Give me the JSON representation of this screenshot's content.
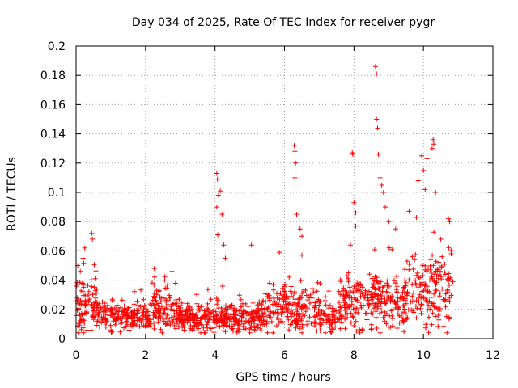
{
  "chart_data": {
    "type": "scatter",
    "title": "Day 034 of 2025, Rate Of TEC Index for receiver pygr",
    "xlabel": "GPS time / hours",
    "ylabel": "ROTI / TECUs",
    "xlim": [
      0,
      12
    ],
    "ylim": [
      0,
      0.2
    ],
    "xticks": [
      "0",
      "2",
      "4",
      "6",
      "8",
      "10",
      "12"
    ],
    "yticks": [
      "0",
      "0.02",
      "0.04",
      "0.06",
      "0.08",
      "0.1",
      "0.12",
      "0.14",
      "0.16",
      "0.18",
      "0.2"
    ],
    "grid": true,
    "marker": "+",
    "color": "#ff0000",
    "series": [
      {
        "name": "ROTI",
        "x_range": [
          0,
          10.85
        ],
        "typical_band": [
          0.005,
          0.03
        ],
        "notable_points": [
          {
            "x": 0.05,
            "y": 0.05
          },
          {
            "x": 0.12,
            "y": 0.046
          },
          {
            "x": 0.2,
            "y": 0.055
          },
          {
            "x": 0.25,
            "y": 0.062
          },
          {
            "x": 0.45,
            "y": 0.072
          },
          {
            "x": 0.47,
            "y": 0.068
          },
          {
            "x": 0.55,
            "y": 0.041
          },
          {
            "x": 2.25,
            "y": 0.048
          },
          {
            "x": 2.55,
            "y": 0.04
          },
          {
            "x": 4.05,
            "y": 0.113
          },
          {
            "x": 4.07,
            "y": 0.109
          },
          {
            "x": 4.15,
            "y": 0.101
          },
          {
            "x": 4.1,
            "y": 0.098
          },
          {
            "x": 4.05,
            "y": 0.09
          },
          {
            "x": 4.2,
            "y": 0.085
          },
          {
            "x": 4.08,
            "y": 0.071
          },
          {
            "x": 4.25,
            "y": 0.064
          },
          {
            "x": 4.3,
            "y": 0.055
          },
          {
            "x": 5.05,
            "y": 0.064
          },
          {
            "x": 5.85,
            "y": 0.059
          },
          {
            "x": 6.28,
            "y": 0.132
          },
          {
            "x": 6.3,
            "y": 0.128
          },
          {
            "x": 6.32,
            "y": 0.12
          },
          {
            "x": 6.3,
            "y": 0.11
          },
          {
            "x": 6.35,
            "y": 0.085
          },
          {
            "x": 6.45,
            "y": 0.075
          },
          {
            "x": 6.5,
            "y": 0.07
          },
          {
            "x": 6.5,
            "y": 0.057
          },
          {
            "x": 7.95,
            "y": 0.127
          },
          {
            "x": 7.97,
            "y": 0.126
          },
          {
            "x": 8.0,
            "y": 0.093
          },
          {
            "x": 8.05,
            "y": 0.086
          },
          {
            "x": 7.9,
            "y": 0.064
          },
          {
            "x": 8.62,
            "y": 0.186
          },
          {
            "x": 8.65,
            "y": 0.181
          },
          {
            "x": 8.65,
            "y": 0.15
          },
          {
            "x": 8.68,
            "y": 0.144
          },
          {
            "x": 8.7,
            "y": 0.126
          },
          {
            "x": 8.75,
            "y": 0.11
          },
          {
            "x": 8.8,
            "y": 0.105
          },
          {
            "x": 8.85,
            "y": 0.1
          },
          {
            "x": 8.9,
            "y": 0.09
          },
          {
            "x": 9.0,
            "y": 0.08
          },
          {
            "x": 9.2,
            "y": 0.075
          },
          {
            "x": 9.85,
            "y": 0.108
          },
          {
            "x": 9.95,
            "y": 0.125
          },
          {
            "x": 10.0,
            "y": 0.115
          },
          {
            "x": 10.05,
            "y": 0.102
          },
          {
            "x": 10.1,
            "y": 0.123
          },
          {
            "x": 10.25,
            "y": 0.13
          },
          {
            "x": 10.28,
            "y": 0.136
          },
          {
            "x": 10.3,
            "y": 0.133
          },
          {
            "x": 10.35,
            "y": 0.1
          },
          {
            "x": 10.72,
            "y": 0.082
          },
          {
            "x": 10.75,
            "y": 0.08
          },
          {
            "x": 10.5,
            "y": 0.068
          },
          {
            "x": 10.8,
            "y": 0.058
          }
        ]
      }
    ]
  }
}
